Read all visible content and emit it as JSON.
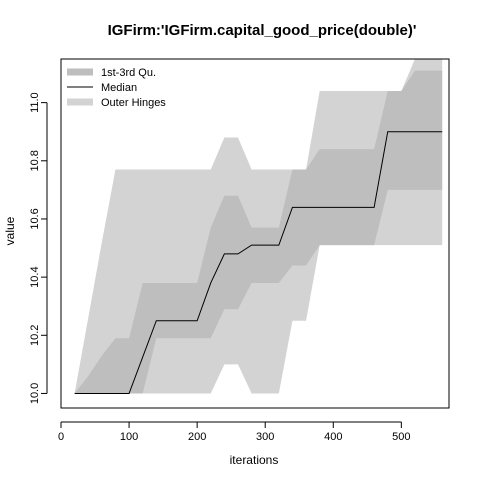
{
  "chart_data": {
    "type": "area",
    "title": "IGFirm:'IGFirm.capital_good_price(double)'",
    "xlabel": "iterations",
    "ylabel": "value",
    "xlim": [
      0,
      570
    ],
    "ylim": [
      9.95,
      11.15
    ],
    "xticks": [
      0,
      100,
      200,
      300,
      400,
      500
    ],
    "yticks": [
      10.0,
      10.2,
      10.4,
      10.6,
      10.8,
      11.0
    ],
    "grid": false,
    "legend": {
      "position": "top-left",
      "entries": [
        {
          "name": "1st-3rd Qu.",
          "color": "#bebebe",
          "style": "band"
        },
        {
          "name": "Median",
          "color": "#000000",
          "style": "line"
        },
        {
          "name": "Outer Hinges",
          "color": "#d3d3d3",
          "style": "band"
        }
      ]
    },
    "x": [
      20,
      40,
      60,
      80,
      100,
      120,
      140,
      160,
      180,
      200,
      220,
      240,
      260,
      280,
      300,
      320,
      340,
      360,
      380,
      400,
      420,
      440,
      460,
      480,
      500,
      520,
      540,
      560
    ],
    "series": [
      {
        "name": "Outer Hinges",
        "role": "outer",
        "lower": [
          10.0,
          10.0,
          10.0,
          10.0,
          10.0,
          10.0,
          10.0,
          10.0,
          10.0,
          10.0,
          10.0,
          10.1,
          10.1,
          10.0,
          10.0,
          10.0,
          10.25,
          10.25,
          10.51,
          10.51,
          10.51,
          10.51,
          10.51,
          10.51,
          10.51,
          10.51,
          10.51,
          10.51
        ],
        "upper": [
          10.0,
          10.26,
          10.52,
          10.77,
          10.77,
          10.77,
          10.77,
          10.77,
          10.77,
          10.77,
          10.77,
          10.88,
          10.88,
          10.77,
          10.77,
          10.77,
          10.77,
          10.77,
          11.04,
          11.04,
          11.04,
          11.04,
          11.04,
          11.04,
          11.04,
          11.15,
          11.15,
          11.15
        ]
      },
      {
        "name": "1st-3rd Qu.",
        "role": "iqr",
        "lower": [
          10.0,
          10.0,
          10.0,
          10.0,
          10.0,
          10.0,
          10.19,
          10.19,
          10.19,
          10.19,
          10.19,
          10.29,
          10.29,
          10.38,
          10.38,
          10.38,
          10.44,
          10.44,
          10.51,
          10.51,
          10.51,
          10.51,
          10.51,
          10.7,
          10.7,
          10.7,
          10.7,
          10.7
        ],
        "upper": [
          10.0,
          10.06,
          10.13,
          10.19,
          10.19,
          10.38,
          10.38,
          10.38,
          10.38,
          10.38,
          10.57,
          10.68,
          10.68,
          10.57,
          10.57,
          10.57,
          10.77,
          10.77,
          10.84,
          10.84,
          10.84,
          10.84,
          10.84,
          11.04,
          11.04,
          11.11,
          11.11,
          11.11
        ]
      },
      {
        "name": "Median",
        "role": "median",
        "x": [
          20,
          100,
          140,
          200,
          220,
          240,
          260,
          280,
          300,
          320,
          340,
          360,
          380,
          400,
          420,
          440,
          460,
          480,
          500,
          520,
          540,
          560
        ],
        "values": [
          10.0,
          10.0,
          10.25,
          10.25,
          10.38,
          10.48,
          10.48,
          10.51,
          10.51,
          10.51,
          10.64,
          10.64,
          10.64,
          10.64,
          10.64,
          10.64,
          10.64,
          10.9,
          10.9,
          10.9,
          10.9,
          10.9
        ]
      }
    ]
  }
}
